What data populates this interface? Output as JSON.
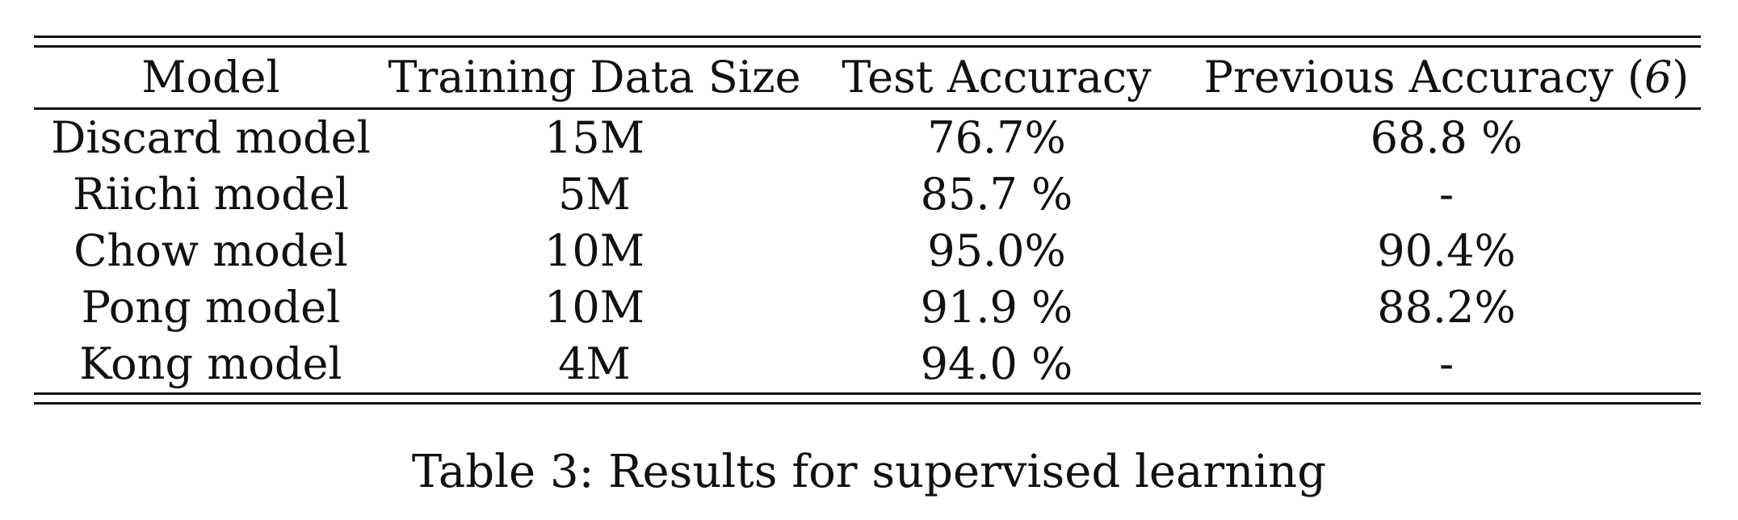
{
  "table": {
    "headers": {
      "model": "Model",
      "training_data_size": "Training Data Size",
      "test_accuracy": "Test Accuracy",
      "previous_accuracy": "Previous Accuracy (",
      "previous_accuracy_cite": "6",
      "previous_accuracy_close": ")"
    },
    "rows": [
      {
        "model": "Discard model",
        "size": "15M",
        "test": "76.7%",
        "prev": "68.8 %"
      },
      {
        "model": "Riichi model",
        "size": "5M",
        "test": "85.7 %",
        "prev": "-"
      },
      {
        "model": "Chow model",
        "size": "10M",
        "test": "95.0%",
        "prev": "90.4%"
      },
      {
        "model": "Pong model",
        "size": "10M",
        "test": "91.9 %",
        "prev": "88.2%"
      },
      {
        "model": "Kong model",
        "size": "4M",
        "test": "94.0 %",
        "prev": "-"
      }
    ]
  },
  "caption": "Table 3: Results for supervised learning"
}
